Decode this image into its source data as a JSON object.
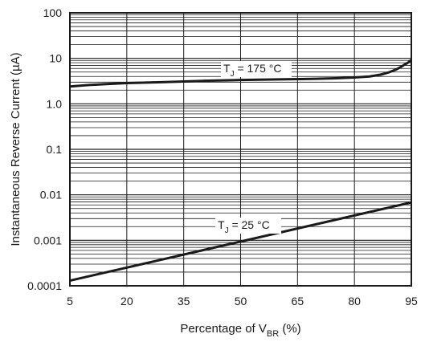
{
  "chart_data": {
    "type": "line",
    "title": "",
    "xlabel": {
      "main": "Percentage of V",
      "sub": "BR",
      "suffix": " (%)"
    },
    "ylabel": "Instantaneous Reverse Current (µA)",
    "x_ticks": [
      5,
      20,
      35,
      50,
      65,
      80,
      95
    ],
    "y_scale": "log",
    "y_ticks": [
      {
        "value": 0.0001,
        "label": "0.0001"
      },
      {
        "value": 0.001,
        "label": "0.001"
      },
      {
        "value": 0.01,
        "label": "0.01"
      },
      {
        "value": 0.1,
        "label": "0.1"
      },
      {
        "value": 1,
        "label": "1.0"
      },
      {
        "value": 10,
        "label": "10"
      },
      {
        "value": 100,
        "label": "100"
      }
    ],
    "xlim": [
      5,
      95
    ],
    "ylim": [
      0.0001,
      100
    ],
    "grid": true,
    "series": [
      {
        "label": {
          "main": "T",
          "sub": "J",
          "suffix": " = 175 °C"
        },
        "x": [
          5,
          10,
          20,
          30,
          40,
          50,
          60,
          70,
          75,
          80,
          84,
          87,
          89,
          91,
          92,
          93,
          94,
          95
        ],
        "y": [
          2.4,
          2.6,
          2.85,
          3.0,
          3.2,
          3.35,
          3.45,
          3.55,
          3.65,
          3.8,
          4.0,
          4.4,
          4.9,
          5.7,
          6.3,
          7.1,
          7.9,
          9.2
        ]
      },
      {
        "label": {
          "main": "T",
          "sub": "J",
          "suffix": " = 25 °C"
        },
        "x": [
          5,
          95
        ],
        "y": [
          0.00013,
          0.0068
        ]
      }
    ]
  }
}
